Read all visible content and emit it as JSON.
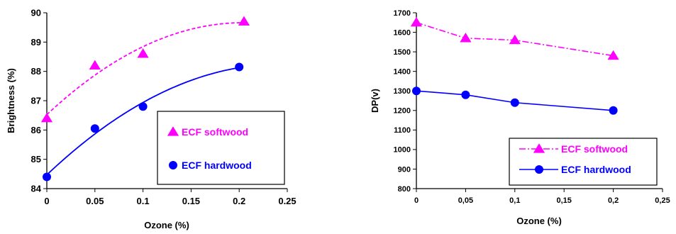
{
  "chart_data": [
    {
      "type": "scatter",
      "xlabel": "Ozone (%)",
      "ylabel": "Brightness (%)",
      "xlim": [
        0,
        0.25
      ],
      "ylim": [
        84,
        90
      ],
      "xticks": [
        "0",
        "0.05",
        "0.1",
        "0.15",
        "0.2",
        "0.25"
      ],
      "yticks": [
        "84",
        "85",
        "86",
        "87",
        "88",
        "89",
        "90"
      ],
      "grid": false,
      "legend_position": "bottom-right",
      "series": [
        {
          "name": "ECF softwood",
          "color": "#ff00ff",
          "marker": "triangle",
          "line": "dashed trendline",
          "x": [
            0,
            0.05,
            0.1,
            0.205
          ],
          "y": [
            86.4,
            88.2,
            88.6,
            89.7
          ]
        },
        {
          "name": "ECF hardwood",
          "color": "#0000ff",
          "marker": "circle",
          "line": "solid trendline",
          "x": [
            0,
            0.05,
            0.1,
            0.2
          ],
          "y": [
            84.4,
            86.05,
            86.8,
            88.15
          ]
        }
      ]
    },
    {
      "type": "line",
      "xlabel": "Ozone (%)",
      "ylabel": "DP(v)",
      "xlim": [
        0,
        0.25
      ],
      "ylim": [
        800,
        1700
      ],
      "xticks": [
        "0",
        "0,05",
        "0,1",
        "0,15",
        "0,2",
        "0,25"
      ],
      "yticks": [
        "800",
        "900",
        "1000",
        "1100",
        "1200",
        "1300",
        "1400",
        "1500",
        "1600",
        "1700"
      ],
      "grid": false,
      "legend_position": "bottom-right",
      "series": [
        {
          "name": "ECF softwood",
          "color": "#ff00ff",
          "marker": "triangle",
          "line": "dash-dot",
          "x": [
            0,
            0.05,
            0.1,
            0.2
          ],
          "y": [
            1650,
            1570,
            1560,
            1480
          ]
        },
        {
          "name": "ECF hardwood",
          "color": "#0000ff",
          "marker": "circle",
          "line": "solid",
          "x": [
            0,
            0.05,
            0.1,
            0.2
          ],
          "y": [
            1300,
            1280,
            1240,
            1200
          ]
        }
      ]
    }
  ]
}
